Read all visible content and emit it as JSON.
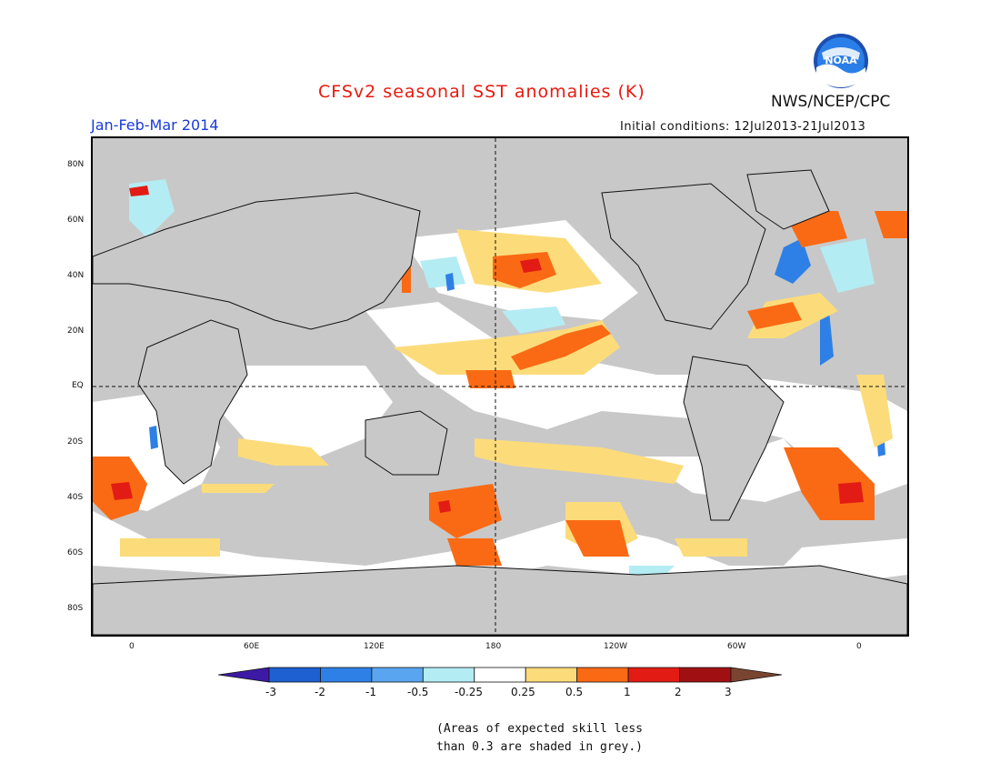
{
  "header": {
    "title": "CFSv2 seasonal SST anomalies (K)",
    "credit": "NWS/NCEP/CPC",
    "season": "Jan-Feb-Mar 2014",
    "initial_conditions": "Initial conditions: 12Jul2013-21Jul2013",
    "logo_text": "NOAA"
  },
  "axes": {
    "lat_labels": [
      "80N",
      "60N",
      "40N",
      "20N",
      "EQ",
      "20S",
      "40S",
      "60S",
      "80S"
    ],
    "lon_labels": [
      "0",
      "60E",
      "120E",
      "180",
      "120W",
      "60W",
      "0"
    ]
  },
  "colorbar": {
    "labels": [
      "-3",
      "-2",
      "-1",
      "-0.5",
      "-0.25",
      "0.25",
      "0.5",
      "1",
      "2",
      "3"
    ],
    "colors": [
      "#3c1aa6",
      "#1e5fd2",
      "#2e80e6",
      "#5aa5ef",
      "#b4ecf4",
      "#ffffff",
      "#fcdc7a",
      "#fa6a14",
      "#e21c14",
      "#a01012",
      "#7a4530"
    ]
  },
  "note": {
    "line1": "(Areas of expected skill less",
    "line2": "than 0.3 are shaded in grey.)"
  },
  "map_colors": {
    "grey": "#c8c8c8",
    "white": "#ffffff",
    "yellow": "#fcdc7a",
    "orange": "#fa6a14",
    "red": "#e21c14",
    "lightblue": "#b4ecf4",
    "blue": "#2e80e6"
  }
}
